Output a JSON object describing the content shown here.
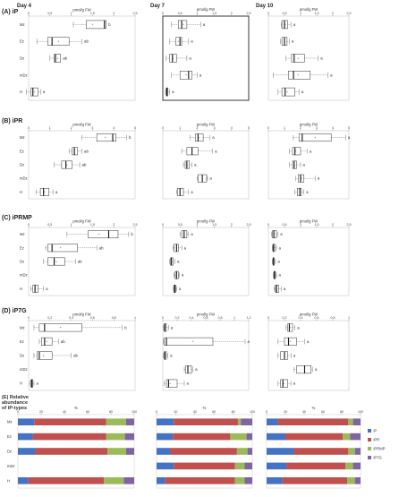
{
  "columns": [
    "Day 4",
    "Day 7",
    "Day 10"
  ],
  "unit_label": "pmol/g FW",
  "pct_label": "%",
  "groups": [
    "Mz",
    "Ez",
    "Dz",
    "mDz",
    "H"
  ],
  "panels": [
    {
      "title": "(A) iP"
    },
    {
      "title": "(B) iPR"
    },
    {
      "title": "(C) iPRMP"
    },
    {
      "title": "(D) iP7G"
    }
  ],
  "panel_e": {
    "title_line1": "(E) Relative",
    "title_line2": "abundance",
    "title_line3": "of iP-types",
    "legend": [
      {
        "label": "iP",
        "color": "#4472c4"
      },
      {
        "label": "iPR",
        "color": "#c0504d"
      },
      {
        "label": "iPRMP",
        "color": "#9bbb59"
      },
      {
        "label": "iP7G",
        "color": "#8064a2"
      }
    ]
  },
  "chart_data": [
    {
      "type": "box",
      "panel": "(A) iP",
      "column": "Day 4",
      "xlabel": "pmol/g FW",
      "ticks": [
        0,
        0.5,
        1,
        1.5,
        2,
        2.5
      ],
      "xlim": [
        0,
        2.5
      ],
      "boxes": [
        {
          "group": "Mz",
          "min": 1.05,
          "q1": 1.35,
          "median": 1.78,
          "q3": 1.82,
          "max": 1.82,
          "mean": 1.5,
          "sig": "b"
        },
        {
          "group": "Ez",
          "min": 0.2,
          "q1": 0.45,
          "median": 0.55,
          "q3": 0.95,
          "max": 1.25,
          "mean": 0.7,
          "sig": "ab"
        },
        {
          "group": "Dz",
          "min": 0.5,
          "q1": 0.6,
          "median": 0.63,
          "q3": 0.75,
          "max": 0.75,
          "mean": 0.68,
          "sig": "ab"
        },
        {
          "group": "H",
          "min": -0.05,
          "q1": 0.05,
          "median": 0.1,
          "q3": 0.22,
          "max": 0.28,
          "mean": 0.14,
          "sig": "a"
        }
      ]
    },
    {
      "type": "box",
      "panel": "(A) iP",
      "column": "Day 7",
      "xlabel": "pmol/g FW",
      "ticks": [
        0,
        0.5,
        1,
        1.5,
        2,
        2.5
      ],
      "xlim": [
        0,
        2.5
      ],
      "boxes": [
        {
          "group": "Mz",
          "min": 0.25,
          "q1": 0.45,
          "median": 0.55,
          "q3": 0.7,
          "max": 1.1,
          "mean": 0.6,
          "sig": "a"
        },
        {
          "group": "Ez",
          "min": 0.2,
          "q1": 0.38,
          "median": 0.5,
          "q3": 0.55,
          "max": 0.75,
          "mean": 0.45,
          "sig": "a"
        },
        {
          "group": "Dz",
          "min": 0.1,
          "q1": 0.2,
          "median": 0.28,
          "q3": 0.4,
          "max": 0.7,
          "mean": 0.3,
          "sig": "a"
        },
        {
          "group": "mDz",
          "min": 0.25,
          "q1": 0.5,
          "median": 0.75,
          "q3": 0.85,
          "max": 1.0,
          "mean": 0.68,
          "sig": "a"
        },
        {
          "group": "H",
          "min": 0.08,
          "q1": 0.1,
          "median": 0.12,
          "q3": 0.15,
          "max": 0.2,
          "mean": 0.13,
          "sig": "a"
        }
      ]
    },
    {
      "type": "box",
      "panel": "(A) iP",
      "column": "Day 10",
      "xlabel": "pmol/g FW",
      "ticks": [
        0,
        0.5,
        1,
        1.5,
        2,
        2.5
      ],
      "xlim": [
        0,
        2.5
      ],
      "boxes": [
        {
          "group": "Mz",
          "min": 0.4,
          "q1": 0.42,
          "median": 0.5,
          "q3": 0.6,
          "max": 0.7,
          "mean": 0.52,
          "sig": "a"
        },
        {
          "group": "Ez",
          "min": 0.38,
          "q1": 0.42,
          "median": 0.5,
          "q3": 0.58,
          "max": 0.65,
          "mean": 0.5,
          "sig": "a"
        },
        {
          "group": "Dz",
          "min": 0.55,
          "q1": 0.72,
          "median": 0.8,
          "q3": 1.12,
          "max": 1.55,
          "mean": 0.92,
          "sig": "a"
        },
        {
          "group": "mDz",
          "min": 0.15,
          "q1": 0.62,
          "median": 0.78,
          "q3": 1.3,
          "max": 1.85,
          "mean": 0.92,
          "sig": "a"
        },
        {
          "group": "H",
          "min": 0.3,
          "q1": 0.42,
          "median": 0.52,
          "q3": 0.82,
          "max": 0.95,
          "mean": 0.58,
          "sig": "a"
        }
      ]
    },
    {
      "type": "box",
      "panel": "(B) iPR",
      "column": "Day 4",
      "xlabel": "pmol/g FW",
      "ticks": [
        0,
        1,
        2,
        3,
        4,
        5
      ],
      "xlim": [
        0,
        5
      ],
      "boxes": [
        {
          "group": "Mz",
          "min": 2.5,
          "q1": 3.2,
          "median": 3.95,
          "q3": 4.1,
          "max": 4.6,
          "mean": 3.6,
          "sig": "b"
        },
        {
          "group": "Ez",
          "min": 1.9,
          "q1": 2.05,
          "median": 2.15,
          "q3": 2.3,
          "max": 2.5,
          "mean": 2.15,
          "sig": "ab"
        },
        {
          "group": "Dz",
          "min": 1.2,
          "q1": 1.55,
          "median": 1.75,
          "q3": 2.05,
          "max": 2.4,
          "mean": 1.8,
          "sig": "ab"
        },
        {
          "group": "H",
          "min": 0.35,
          "q1": 0.55,
          "median": 0.7,
          "q3": 0.95,
          "max": 1.15,
          "mean": 0.75,
          "sig": "a"
        }
      ]
    },
    {
      "type": "box",
      "panel": "(B) iPR",
      "column": "Day 7",
      "xlabel": "pmol/g FW",
      "ticks": [
        0,
        1,
        2,
        3,
        4,
        5
      ],
      "xlim": [
        0,
        5
      ],
      "boxes": [
        {
          "group": "Mz",
          "min": 1.6,
          "q1": 1.9,
          "median": 2.05,
          "q3": 2.35,
          "max": 2.75,
          "mean": 2.1,
          "sig": "a"
        },
        {
          "group": "Ez",
          "min": 1.1,
          "q1": 1.4,
          "median": 1.7,
          "q3": 2.05,
          "max": 2.9,
          "mean": 1.7,
          "sig": "a"
        },
        {
          "group": "Dz",
          "min": 1.2,
          "q1": 1.3,
          "median": 1.4,
          "q3": 1.55,
          "max": 1.7,
          "mean": 1.42,
          "sig": "a"
        },
        {
          "group": "mDz",
          "min": 2.0,
          "q1": 2.05,
          "median": 2.3,
          "q3": 2.55,
          "max": 2.6,
          "mean": 2.3,
          "sig": "a"
        },
        {
          "group": "H",
          "min": 0.8,
          "q1": 0.85,
          "median": 1.0,
          "q3": 1.2,
          "max": 1.5,
          "mean": 1.0,
          "sig": "a"
        }
      ]
    },
    {
      "type": "box",
      "panel": "(B) iPR",
      "column": "Day 10",
      "xlabel": "pmol/g FW",
      "ticks": [
        0,
        1,
        2,
        3,
        4,
        5
      ],
      "xlim": [
        0,
        5
      ],
      "boxes": [
        {
          "group": "Mz",
          "min": 1.55,
          "q1": 1.9,
          "median": 2.1,
          "q3": 3.9,
          "max": 4.8,
          "mean": 2.9,
          "sig": "a"
        },
        {
          "group": "Ez",
          "min": 1.3,
          "q1": 1.5,
          "median": 1.65,
          "q3": 2.0,
          "max": 2.4,
          "mean": 1.7,
          "sig": "a"
        },
        {
          "group": "Dz",
          "min": 1.3,
          "q1": 1.5,
          "median": 1.6,
          "q3": 1.75,
          "max": 2.0,
          "mean": 1.62,
          "sig": "a"
        },
        {
          "group": "mDz",
          "min": 1.7,
          "q1": 1.85,
          "median": 2.0,
          "q3": 2.2,
          "max": 2.9,
          "mean": 2.05,
          "sig": "a"
        },
        {
          "group": "H",
          "min": 1.65,
          "q1": 1.8,
          "median": 1.95,
          "q3": 2.05,
          "max": 2.2,
          "mean": 1.95,
          "sig": "a"
        }
      ]
    },
    {
      "type": "box",
      "panel": "(C) iPRMP",
      "column": "Day 4",
      "xlabel": "pmol/g FW",
      "ticks": [
        0,
        0.5,
        1,
        1.5,
        2,
        2.5
      ],
      "xlim": [
        0,
        2.5
      ],
      "boxes": [
        {
          "group": "Mz",
          "min": 0.9,
          "q1": 1.4,
          "median": 1.88,
          "q3": 2.1,
          "max": 2.35,
          "mean": 1.65,
          "sig": "b"
        },
        {
          "group": "Ez",
          "min": 0.4,
          "q1": 0.45,
          "median": 0.55,
          "q3": 1.15,
          "max": 1.6,
          "mean": 0.75,
          "sig": "ab"
        },
        {
          "group": "Dz",
          "min": 0.35,
          "q1": 0.45,
          "median": 0.6,
          "q3": 0.85,
          "max": 1.1,
          "mean": 0.65,
          "sig": "ab"
        },
        {
          "group": "H",
          "min": 0.05,
          "q1": 0.1,
          "median": 0.15,
          "q3": 0.22,
          "max": 0.35,
          "mean": 0.16,
          "sig": "a"
        }
      ]
    },
    {
      "type": "box",
      "panel": "(C) iPRMP",
      "column": "Day 7",
      "xlabel": "pmol/g FW",
      "ticks": [
        0,
        0.5,
        1,
        1.5,
        2,
        2.5
      ],
      "xlim": [
        0,
        2.5
      ],
      "boxes": [
        {
          "group": "Mz",
          "min": 0.5,
          "q1": 0.55,
          "median": 0.62,
          "q3": 0.7,
          "max": 0.75,
          "mean": 0.62,
          "sig": "a"
        },
        {
          "group": "Ez",
          "min": 0.3,
          "q1": 0.33,
          "median": 0.4,
          "q3": 0.45,
          "max": 0.55,
          "mean": 0.4,
          "sig": "a"
        },
        {
          "group": "Dz",
          "min": 0.2,
          "q1": 0.22,
          "median": 0.25,
          "q3": 0.3,
          "max": 0.35,
          "mean": 0.26,
          "sig": "a"
        },
        {
          "group": "mDz",
          "min": 0.32,
          "q1": 0.36,
          "median": 0.4,
          "q3": 0.45,
          "max": 0.48,
          "mean": 0.4,
          "sig": "a"
        },
        {
          "group": "H",
          "min": 0.3,
          "q1": 0.32,
          "median": 0.35,
          "q3": 0.37,
          "max": 0.4,
          "mean": 0.35,
          "sig": "a"
        }
      ]
    },
    {
      "type": "box",
      "panel": "(C) iPRMP",
      "column": "Day 10",
      "xlabel": "pmol/g FW",
      "ticks": [
        0,
        0.5,
        1,
        1.5,
        2,
        2.5
      ],
      "xlim": [
        0,
        2.5
      ],
      "boxes": [
        {
          "group": "Mz",
          "min": 0.1,
          "q1": 0.13,
          "median": 0.17,
          "q3": 0.25,
          "max": 0.3,
          "mean": 0.18,
          "sig": "a"
        },
        {
          "group": "Ez",
          "min": 0.12,
          "q1": 0.14,
          "median": 0.16,
          "q3": 0.2,
          "max": 0.25,
          "mean": 0.17,
          "sig": "a"
        },
        {
          "group": "Dz",
          "min": 0.12,
          "q1": 0.14,
          "median": 0.16,
          "q3": 0.18,
          "max": 0.22,
          "mean": 0.16,
          "sig": "a"
        },
        {
          "group": "mDz",
          "min": 0.15,
          "q1": 0.17,
          "median": 0.19,
          "q3": 0.22,
          "max": 0.25,
          "mean": 0.19,
          "sig": "a"
        },
        {
          "group": "H",
          "min": 0.18,
          "q1": 0.22,
          "median": 0.25,
          "q3": 0.32,
          "max": 0.4,
          "mean": 0.26,
          "sig": "a"
        }
      ]
    },
    {
      "type": "box",
      "panel": "(D) iP7G",
      "column": "Day 4",
      "xlabel": "pmol/g FW",
      "ticks": [
        0,
        0.2,
        0.4,
        0.6,
        0.8,
        1.0
      ],
      "xlim": [
        0,
        1.0
      ],
      "boxes": [
        {
          "group": "Mz",
          "min": 0.05,
          "q1": 0.1,
          "median": 0.15,
          "q3": 0.5,
          "max": 0.88,
          "mean": 0.3,
          "sig": "b"
        },
        {
          "group": "Ez",
          "min": 0.1,
          "q1": 0.12,
          "median": 0.15,
          "q3": 0.22,
          "max": 0.28,
          "mean": 0.17,
          "sig": "ab"
        },
        {
          "group": "Dz",
          "min": 0.05,
          "q1": 0.08,
          "median": 0.1,
          "q3": 0.22,
          "max": 0.4,
          "mean": 0.14,
          "sig": "ab"
        },
        {
          "group": "H",
          "min": 0.01,
          "q1": 0.02,
          "median": 0.03,
          "q3": 0.04,
          "max": 0.05,
          "mean": 0.03,
          "sig": "a"
        }
      ]
    },
    {
      "type": "box",
      "panel": "(D) iP7G",
      "column": "Day 7",
      "xlabel": "pmol/g FW",
      "ticks": [
        0,
        0.2,
        0.4,
        0.6,
        0.8,
        1.0,
        1.2
      ],
      "xlim": [
        0,
        1.2
      ],
      "boxes": [
        {
          "group": "Mz",
          "min": 0.01,
          "q1": 0.02,
          "median": 0.03,
          "q3": 0.05,
          "max": 0.08,
          "mean": 0.03,
          "sig": "a"
        },
        {
          "group": "Ez",
          "min": 0.01,
          "q1": 0.02,
          "median": 0.05,
          "q3": 0.7,
          "max": 1.15,
          "mean": 0.42,
          "sig": "a"
        },
        {
          "group": "Dz",
          "min": 0.01,
          "q1": 0.02,
          "median": 0.03,
          "q3": 0.05,
          "max": 0.07,
          "mean": 0.03,
          "sig": "a"
        },
        {
          "group": "mDz",
          "min": 0.3,
          "q1": 0.32,
          "median": 0.35,
          "q3": 0.4,
          "max": 0.42,
          "mean": 0.35,
          "sig": "a"
        },
        {
          "group": "H",
          "min": 0.02,
          "q1": 0.05,
          "median": 0.08,
          "q3": 0.2,
          "max": 0.3,
          "mean": 0.1,
          "sig": "a"
        }
      ]
    },
    {
      "type": "box",
      "panel": "(D) iP7G",
      "column": "Day 10",
      "xlabel": "pmol/g FW",
      "ticks": [
        0,
        0.2,
        0.4,
        0.6,
        0.8,
        1.0
      ],
      "xlim": [
        0,
        1.0
      ],
      "boxes": [
        {
          "group": "Mz",
          "min": 0.22,
          "q1": 0.24,
          "median": 0.26,
          "q3": 0.3,
          "max": 0.33,
          "mean": 0.27,
          "sig": "a"
        },
        {
          "group": "Ez",
          "min": 0.12,
          "q1": 0.2,
          "median": 0.25,
          "q3": 0.35,
          "max": 0.45,
          "mean": 0.27,
          "sig": "a"
        },
        {
          "group": "Dz",
          "min": 0.12,
          "q1": 0.15,
          "median": 0.2,
          "q3": 0.24,
          "max": 0.28,
          "mean": 0.2,
          "sig": "a"
        },
        {
          "group": "mDz",
          "min": 0.32,
          "q1": 0.35,
          "median": 0.45,
          "q3": 0.53,
          "max": 0.55,
          "mean": 0.45,
          "sig": "a"
        },
        {
          "group": "H",
          "min": 0.12,
          "q1": 0.15,
          "median": 0.18,
          "q3": 0.24,
          "max": 0.28,
          "mean": 0.19,
          "sig": "a"
        }
      ]
    },
    {
      "type": "stacked-bar",
      "panel": "(E)",
      "column": "Day 4",
      "xlabel": "%",
      "ticks": [
        0,
        20,
        40,
        60,
        80,
        100
      ],
      "xlim": [
        0,
        100
      ],
      "series_names": [
        "iP",
        "iPR",
        "iPRMP",
        "iP7G"
      ],
      "rows": [
        {
          "group": "Mz",
          "values": [
            14,
            62,
            17,
            7
          ]
        },
        {
          "group": "Ez",
          "values": [
            13,
            63,
            16,
            8
          ]
        },
        {
          "group": "Dz",
          "values": [
            15,
            62,
            16,
            7
          ]
        },
        {
          "group": "mDz",
          "values": []
        },
        {
          "group": "H",
          "values": [
            9,
            65,
            17,
            9
          ]
        }
      ]
    },
    {
      "type": "stacked-bar",
      "panel": "(E)",
      "column": "Day 7",
      "xlabel": "%",
      "ticks": [
        0,
        20,
        40,
        60,
        80,
        100
      ],
      "xlim": [
        0,
        100
      ],
      "series_names": [
        "iP",
        "iPR",
        "iPRMP",
        "iP7G"
      ],
      "rows": [
        {
          "group": "Mz",
          "values": [
            18,
            67,
            3,
            12
          ]
        },
        {
          "group": "Ez",
          "values": [
            17,
            60,
            17,
            6
          ]
        },
        {
          "group": "Dz",
          "values": [
            14,
            70,
            11,
            5
          ]
        },
        {
          "group": "mDz",
          "values": [
            18,
            64,
            10,
            8
          ]
        },
        {
          "group": "H",
          "values": [
            9,
            73,
            10,
            8
          ]
        }
      ]
    },
    {
      "type": "stacked-bar",
      "panel": "(E)",
      "column": "Day 10",
      "xlabel": "%",
      "ticks": [
        0,
        20,
        40,
        60,
        80,
        100
      ],
      "xlim": [
        0,
        100
      ],
      "series_names": [
        "iP",
        "iPR",
        "iPRMP",
        "iP7G"
      ],
      "rows": [
        {
          "group": "Mz",
          "values": [
            12,
            75,
            5,
            8
          ]
        },
        {
          "group": "Ez",
          "values": [
            20,
            61,
            8,
            11
          ]
        },
        {
          "group": "Dz",
          "values": [
            29,
            58,
            7,
            6
          ]
        },
        {
          "group": "mDz",
          "values": [
            21,
            63,
            8,
            8
          ]
        },
        {
          "group": "H",
          "values": [
            17,
            69,
            8,
            6
          ]
        }
      ]
    }
  ]
}
